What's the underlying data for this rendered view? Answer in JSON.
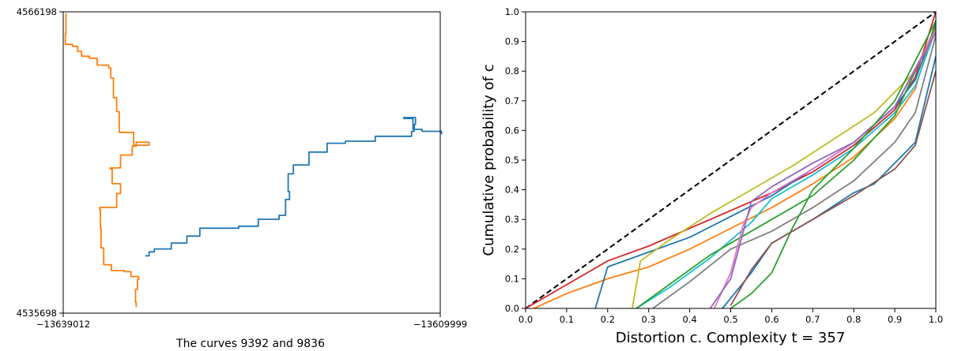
{
  "chart_data": [
    {
      "type": "line",
      "title": "",
      "caption": "The curves 9392 and 9836",
      "xlabel": "",
      "ylabel": "",
      "x_tick_labels": [
        "−13639012",
        "−13609999"
      ],
      "y_tick_labels": [
        "4566198",
        "4535698"
      ],
      "xlim": [
        -13639012,
        -13609999
      ],
      "ylim": [
        4535698,
        4566198
      ],
      "colors": {
        "blue": "#1f77b4",
        "orange": "#ff7f0e"
      },
      "series": [
        {
          "color": "#ff7f0e",
          "points": [
            [
              -13638740,
              4566000
            ],
            [
              -13638800,
              4564000
            ],
            [
              -13638850,
              4562900
            ],
            [
              -13638300,
              4562700
            ],
            [
              -13637900,
              4562200
            ],
            [
              -13637600,
              4561700
            ],
            [
              -13637000,
              4561500
            ],
            [
              -13636400,
              4560800
            ],
            [
              -13635500,
              4560500
            ],
            [
              -13635350,
              4559500
            ],
            [
              -13635150,
              4557500
            ],
            [
              -13634900,
              4556100
            ],
            [
              -13634700,
              4554000
            ],
            [
              -13633600,
              4552700
            ],
            [
              -13632400,
              4553000
            ],
            [
              -13633400,
              4552600
            ],
            [
              -13633700,
              4551700
            ],
            [
              -13634600,
              4550400
            ],
            [
              -13635400,
              4550300
            ],
            [
              -13635250,
              4548800
            ],
            [
              -13634600,
              4547800
            ],
            [
              -13634900,
              4546400
            ],
            [
              -13636200,
              4546200
            ],
            [
              -13636150,
              4544300
            ],
            [
              -13636100,
              4542300
            ],
            [
              -13635900,
              4540600
            ],
            [
              -13635300,
              4540000
            ],
            [
              -13634300,
              4539900
            ],
            [
              -13633800,
              4539400
            ],
            [
              -13633200,
              4539100
            ],
            [
              -13633300,
              4538100
            ],
            [
              -13633450,
              4536800
            ],
            [
              -13633400,
              4536300
            ]
          ]
        },
        {
          "color": "#1f77b4",
          "points": [
            [
              -13632700,
              4541500
            ],
            [
              -13632400,
              4541900
            ],
            [
              -13632000,
              4542200
            ],
            [
              -13630700,
              4542800
            ],
            [
              -13629500,
              4543500
            ],
            [
              -13628500,
              4544300
            ],
            [
              -13625500,
              4544500
            ],
            [
              -13624000,
              4545200
            ],
            [
              -13622400,
              4545600
            ],
            [
              -13621900,
              4547200
            ],
            [
              -13621600,
              4548000
            ],
            [
              -13621700,
              4549800
            ],
            [
              -13621300,
              4550700
            ],
            [
              -13620100,
              4552000
            ],
            [
              -13618700,
              4552900
            ],
            [
              -13617300,
              4553100
            ],
            [
              -13615000,
              4553600
            ],
            [
              -13612200,
              4554100
            ],
            [
              -13612000,
              4554800
            ],
            [
              -13611900,
              4555500
            ],
            [
              -13612800,
              4555400
            ],
            [
              -13612100,
              4554300
            ],
            [
              -13611400,
              4554100
            ],
            [
              -13609900,
              4553800
            ]
          ]
        }
      ]
    },
    {
      "type": "line",
      "title": "",
      "xlabel": "Distortion c. Complexity t = 357",
      "ylabel": "Cumulative probability of c",
      "xlim": [
        0.0,
        1.0
      ],
      "ylim": [
        0.0,
        1.0
      ],
      "x_tick_labels": [
        "0.0",
        "0.1",
        "0.2",
        "0.3",
        "0.4",
        "0.5",
        "0.6",
        "0.7",
        "0.8",
        "0.9",
        "1.0"
      ],
      "y_tick_labels": [
        "0.0",
        "0.1",
        "0.2",
        "0.3",
        "0.4",
        "0.5",
        "0.6",
        "0.7",
        "0.8",
        "0.9",
        "1.0"
      ],
      "reference_line": {
        "style": "dashed",
        "color": "#000000",
        "x": [
          0,
          1
        ],
        "y": [
          0,
          1
        ]
      },
      "series": [
        {
          "color": "#d62728",
          "x": [
            0.0,
            0.05,
            0.1,
            0.15,
            0.2,
            0.3,
            0.4,
            0.5,
            0.6,
            0.7,
            0.8,
            0.9,
            0.95,
            1.0
          ],
          "y": [
            0.0,
            0.04,
            0.08,
            0.12,
            0.16,
            0.21,
            0.27,
            0.33,
            0.39,
            0.46,
            0.55,
            0.67,
            0.78,
            1.0
          ]
        },
        {
          "color": "#ff7f0e",
          "x": [
            0.02,
            0.1,
            0.2,
            0.3,
            0.4,
            0.5,
            0.6,
            0.7,
            0.8,
            0.9,
            0.95,
            1.0
          ],
          "y": [
            0.0,
            0.05,
            0.1,
            0.14,
            0.2,
            0.27,
            0.34,
            0.42,
            0.51,
            0.64,
            0.74,
            0.97
          ]
        },
        {
          "color": "#1f77b4",
          "x": [
            0.17,
            0.2,
            0.3,
            0.4,
            0.5,
            0.6,
            0.7,
            0.8,
            0.9,
            0.95,
            1.0
          ],
          "y": [
            0.0,
            0.14,
            0.19,
            0.24,
            0.31,
            0.38,
            0.47,
            0.56,
            0.68,
            0.77,
            0.96
          ]
        },
        {
          "color": "#bcbd22",
          "x": [
            0.26,
            0.28,
            0.35,
            0.45,
            0.55,
            0.65,
            0.75,
            0.85,
            0.95,
            1.0
          ],
          "y": [
            0.0,
            0.16,
            0.23,
            0.32,
            0.4,
            0.48,
            0.57,
            0.66,
            0.8,
            0.95
          ]
        },
        {
          "color": "#17becf",
          "x": [
            0.27,
            0.35,
            0.45,
            0.55,
            0.6,
            0.7,
            0.8,
            0.9,
            0.95,
            1.0
          ],
          "y": [
            0.0,
            0.07,
            0.17,
            0.29,
            0.37,
            0.45,
            0.54,
            0.66,
            0.75,
            0.94
          ]
        },
        {
          "color": "#2ca02c",
          "x": [
            0.27,
            0.35,
            0.45,
            0.55,
            0.6,
            0.7,
            0.8,
            0.9,
            1.0
          ],
          "y": [
            0.0,
            0.08,
            0.18,
            0.26,
            0.3,
            0.38,
            0.5,
            0.65,
            0.95
          ]
        },
        {
          "color": "#7f7f7f",
          "x": [
            0.31,
            0.4,
            0.5,
            0.6,
            0.7,
            0.8,
            0.9,
            0.95,
            1.0
          ],
          "y": [
            0.0,
            0.09,
            0.2,
            0.26,
            0.34,
            0.43,
            0.56,
            0.66,
            0.92
          ]
        },
        {
          "color": "#e377c2",
          "x": [
            0.46,
            0.5,
            0.53,
            0.55,
            0.6,
            0.7,
            0.8,
            0.9,
            1.0
          ],
          "y": [
            0.0,
            0.12,
            0.28,
            0.34,
            0.39,
            0.47,
            0.56,
            0.68,
            0.94
          ]
        },
        {
          "color": "#9467bd",
          "x": [
            0.45,
            0.5,
            0.55,
            0.6,
            0.7,
            0.8,
            0.9,
            1.0
          ],
          "y": [
            0.0,
            0.1,
            0.36,
            0.41,
            0.49,
            0.56,
            0.68,
            0.93
          ]
        },
        {
          "color": "#2ca02c",
          "x": [
            0.5,
            0.55,
            0.6,
            0.65,
            0.7,
            0.8,
            0.9,
            1.0
          ],
          "y": [
            0.0,
            0.05,
            0.12,
            0.27,
            0.4,
            0.54,
            0.7,
            0.97
          ]
        },
        {
          "color": "#1f77b4",
          "x": [
            0.48,
            0.55,
            0.6,
            0.7,
            0.8,
            0.85,
            0.9,
            0.95,
            1.0
          ],
          "y": [
            0.0,
            0.12,
            0.22,
            0.3,
            0.39,
            0.42,
            0.49,
            0.56,
            0.85
          ]
        },
        {
          "color": "#8c564b",
          "x": [
            0.5,
            0.55,
            0.6,
            0.7,
            0.8,
            0.9,
            0.95,
            1.0
          ],
          "y": [
            0.01,
            0.13,
            0.22,
            0.3,
            0.38,
            0.47,
            0.55,
            0.8
          ]
        }
      ]
    }
  ]
}
